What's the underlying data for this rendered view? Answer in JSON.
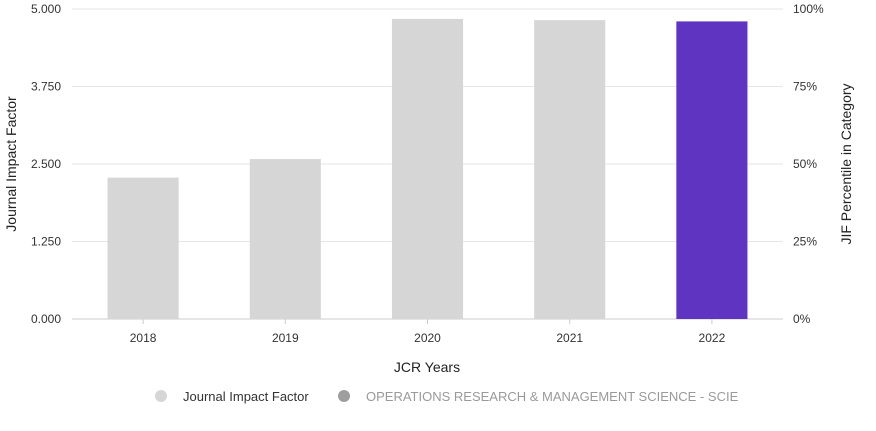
{
  "chart_data": {
    "type": "bar",
    "categories": [
      "2018",
      "2019",
      "2020",
      "2021",
      "2022"
    ],
    "values": [
      2.28,
      2.58,
      4.84,
      4.82,
      4.8
    ],
    "ylabel": "Journal Impact Factor",
    "ylabel_right": "JIF Percentile in Category",
    "xlabel": "JCR Years",
    "ylim": [
      0,
      5
    ],
    "yticks": [
      "0.000",
      "1.250",
      "2.500",
      "3.750",
      "5.000"
    ],
    "y2ticks": [
      "0%",
      "25%",
      "50%",
      "75%",
      "100%"
    ],
    "highlight_index": 4,
    "colors": {
      "bar": "#d6d6d6",
      "highlight": "#5f34c0",
      "grid": "#e6e6e6"
    },
    "legend": {
      "position": "bottom-center",
      "items": [
        {
          "label": "Journal Impact Factor",
          "color": "#d6d6d6",
          "text_color": "#333333"
        },
        {
          "label": "OPERATIONS RESEARCH & MANAGEMENT SCIENCE - SCIE",
          "color": "#9e9e9e",
          "text_color": "#9a9a9a"
        }
      ]
    }
  }
}
